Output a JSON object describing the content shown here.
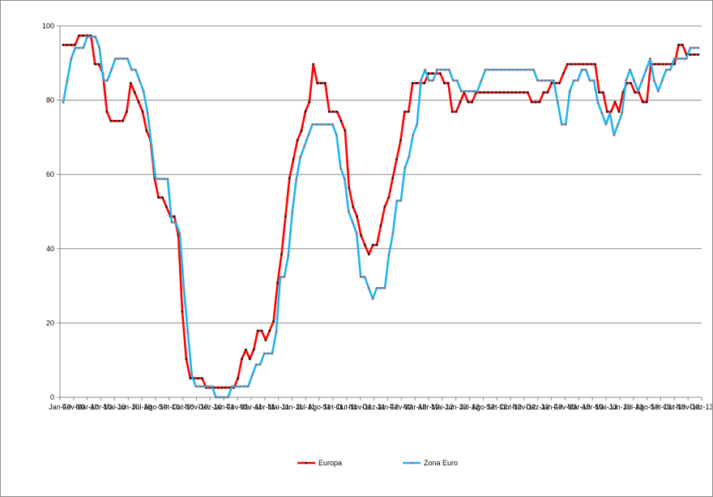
{
  "chart_data": {
    "type": "line",
    "title": "",
    "xlabel": "",
    "ylabel": "",
    "ylim": [
      0,
      100
    ],
    "y_ticks": [
      0,
      20,
      40,
      60,
      80,
      100
    ],
    "grid": "horizontal",
    "legend_position": "bottom",
    "x_tick_labels": [
      "Jan-10",
      "Fev-10",
      "Mar-10",
      "Abr-10",
      "Mai-10",
      "Jun-10",
      "Jul-10",
      "Ago-10",
      "Set-10",
      "Out-10",
      "Nov-10",
      "Dez-10",
      "Jan-11",
      "Fev-11",
      "Mar-11",
      "Abr-11",
      "Mai-11",
      "Jun-11",
      "Jul-11",
      "Ago-11",
      "Set-11",
      "Out-11",
      "Nov-11",
      "Dez-11",
      "Jan-12",
      "Fev-12",
      "Mar-12",
      "Abr-12",
      "Mai-12",
      "Jun-12",
      "Jul-12",
      "Ago-12",
      "Set-12",
      "Out-12",
      "Nov-12",
      "Dez-12",
      "Jan-13",
      "Fev-13",
      "Mar-13",
      "Abr-13",
      "Mai-13",
      "Jun-13",
      "Jul-13",
      "Ago-13",
      "Set-13",
      "Out-13",
      "Nov-13",
      "Dez-13"
    ],
    "series": [
      {
        "name": "Europa",
        "color": "#ff0000",
        "marker_color": "#1a1a1a",
        "values": [
          94.9,
          94.9,
          94.9,
          94.9,
          97.4,
          97.4,
          97.4,
          97.4,
          89.7,
          89.7,
          87.2,
          76.9,
          74.4,
          74.4,
          74.4,
          74.4,
          76.9,
          84.6,
          82.1,
          79.5,
          76.9,
          71.8,
          69.2,
          59.0,
          53.8,
          53.8,
          51.3,
          48.7,
          48.7,
          43.6,
          23.1,
          10.3,
          5.1,
          5.1,
          5.1,
          5.1,
          2.6,
          2.6,
          2.6,
          2.6,
          2.6,
          2.6,
          2.6,
          2.6,
          5.1,
          10.3,
          12.8,
          10.3,
          12.8,
          17.9,
          17.9,
          15.4,
          17.9,
          20.5,
          30.8,
          38.5,
          48.7,
          59.0,
          64.1,
          69.2,
          71.8,
          76.9,
          79.5,
          89.7,
          84.6,
          84.6,
          84.6,
          76.9,
          76.9,
          76.9,
          74.4,
          71.8,
          56.4,
          51.3,
          48.7,
          43.6,
          41.0,
          38.5,
          41.0,
          41.0,
          46.2,
          51.3,
          53.8,
          59.0,
          64.1,
          69.2,
          76.9,
          76.9,
          84.6,
          84.6,
          84.6,
          84.6,
          87.2,
          87.2,
          87.2,
          87.2,
          84.6,
          84.6,
          76.9,
          76.9,
          79.5,
          82.1,
          79.5,
          79.5,
          82.1,
          82.1,
          82.1,
          82.1,
          82.1,
          82.1,
          82.1,
          82.1,
          82.1,
          82.1,
          82.1,
          82.1,
          82.1,
          82.1,
          79.5,
          79.5,
          79.5,
          82.1,
          82.1,
          84.6,
          84.6,
          84.6,
          87.2,
          89.7,
          89.7,
          89.7,
          89.7,
          89.7,
          89.7,
          89.7,
          89.7,
          82.1,
          82.1,
          76.9,
          76.9,
          79.5,
          76.9,
          82.1,
          84.6,
          84.6,
          82.1,
          82.1,
          79.5,
          79.5,
          89.7,
          89.7,
          89.7,
          89.7,
          89.7,
          89.7,
          89.7,
          94.9,
          94.9,
          92.3,
          92.3,
          92.3,
          92.3
        ]
      },
      {
        "name": "Zona Euro",
        "color": "#1eb4ee",
        "marker_color": "#b06b6b",
        "values": [
          79.4,
          85.3,
          91.2,
          94.1,
          94.1,
          94.1,
          97.1,
          97.1,
          97.1,
          94.1,
          85.3,
          85.3,
          88.2,
          91.2,
          91.2,
          91.2,
          91.2,
          88.2,
          88.2,
          85.3,
          82.4,
          76.5,
          67.6,
          58.8,
          58.8,
          58.8,
          58.8,
          47.1,
          47.1,
          44.1,
          29.4,
          17.6,
          5.9,
          2.9,
          2.9,
          2.9,
          2.9,
          2.9,
          0.0,
          0.0,
          0.0,
          0.0,
          2.9,
          2.9,
          2.9,
          2.9,
          2.9,
          5.9,
          8.8,
          8.8,
          11.8,
          11.8,
          11.8,
          17.6,
          32.4,
          32.4,
          38.2,
          50.0,
          58.8,
          64.7,
          67.6,
          70.6,
          73.5,
          73.5,
          73.5,
          73.5,
          73.5,
          73.5,
          70.6,
          61.8,
          58.8,
          50.0,
          47.1,
          44.1,
          32.4,
          32.4,
          29.4,
          26.5,
          29.4,
          29.4,
          29.4,
          38.2,
          44.1,
          52.9,
          52.9,
          61.8,
          64.7,
          70.6,
          73.5,
          85.3,
          88.2,
          85.3,
          85.3,
          88.2,
          88.2,
          88.2,
          88.2,
          85.3,
          85.3,
          82.4,
          82.4,
          82.4,
          82.4,
          82.4,
          85.3,
          88.2,
          88.2,
          88.2,
          88.2,
          88.2,
          88.2,
          88.2,
          88.2,
          88.2,
          88.2,
          88.2,
          88.2,
          88.2,
          85.3,
          85.3,
          85.3,
          85.3,
          85.3,
          79.4,
          73.5,
          73.5,
          82.4,
          85.3,
          85.3,
          88.2,
          88.2,
          85.3,
          85.3,
          79.4,
          76.5,
          73.5,
          76.5,
          70.6,
          73.5,
          76.5,
          85.3,
          88.2,
          85.3,
          82.4,
          85.3,
          88.2,
          91.2,
          85.3,
          82.4,
          85.3,
          88.2,
          88.2,
          91.2,
          91.2,
          91.2,
          91.2,
          94.1,
          94.1,
          94.1
        ]
      }
    ]
  }
}
